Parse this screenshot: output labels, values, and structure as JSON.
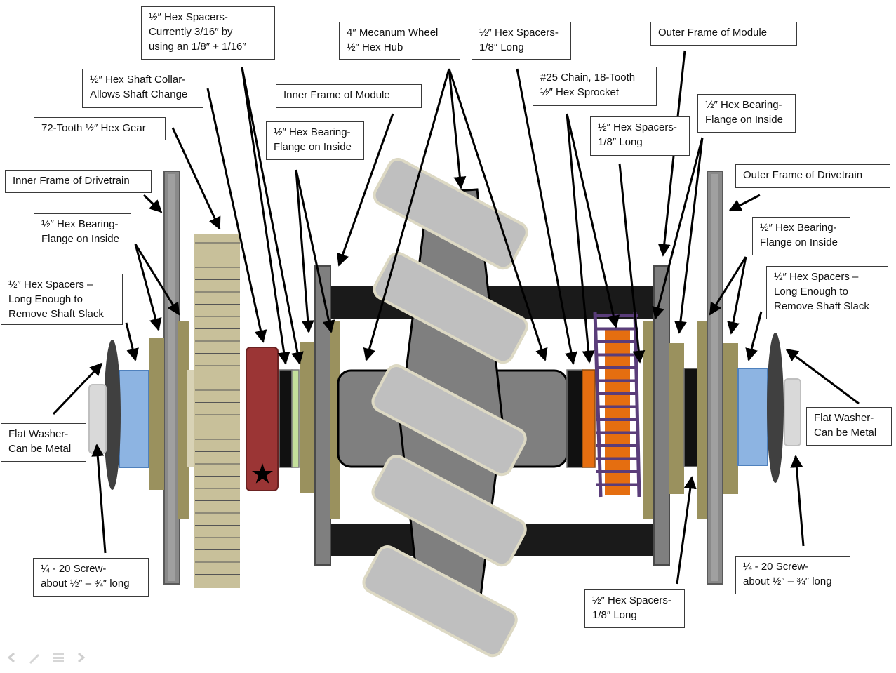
{
  "labels": {
    "hex_spacers_3_16": "½″ Hex Spacers-\nCurrently 3/16″ by\nusing an 1/8″ + 1/16″",
    "mecanum_wheel": "4″ Mecanum Wheel\n½″ Hex Hub",
    "hex_spacers_top_right": "½″ Hex Spacers-\n1/8″ Long",
    "outer_frame_module": "Outer Frame of Module",
    "shaft_collar": "½″ Hex Shaft Collar-\nAllows Shaft Change",
    "inner_frame_module": "Inner Frame of Module",
    "chain_sprocket": "#25 Chain, 18-Tooth\n½″ Hex Sprocket",
    "bearing_right_upper": "½″ Hex Bearing-\nFlange on Inside",
    "hex_gear": "72-Tooth ½″ Hex Gear",
    "bearing_center": "½″ Hex Bearing-\nFlange on Inside",
    "hex_spacers_mid_right": "½″ Hex Spacers-\n1/8″ Long",
    "inner_frame_drivetrain": "Inner Frame of Drivetrain",
    "outer_frame_drivetrain": "Outer Frame of Drivetrain",
    "bearing_left": "½″ Hex Bearing-\nFlange on Inside",
    "bearing_right_lower": "½″ Hex Bearing-\nFlange on Inside",
    "spacers_long_left": "½″ Hex Spacers –\nLong Enough to\nRemove Shaft Slack",
    "spacers_long_right": "½″ Hex Spacers –\nLong Enough to\nRemove Shaft Slack",
    "washer_left": "Flat Washer-\nCan be Metal",
    "washer_right": "Flat Washer-\nCan be Metal",
    "screw_left": "¼  - 20 Screw-\nabout ½″ – ¾″ long",
    "screw_right": "¼  - 20 Screw-\nabout ½″ – ¾″ long",
    "hex_spacers_bottom": "½″ Hex Spacers-\n1/8″ Long"
  },
  "colors": {
    "frame": "#8a8a8a",
    "bearing": "#9a915e",
    "gear": "#c8c09a",
    "collar": "#9b3535",
    "spacer_black": "#111111",
    "spacer_green": "#c4df9b",
    "hub": "#7f7f7f",
    "roller": "#bfbfbf",
    "sprocket": "#e56e10",
    "chain": "#5a3d7a",
    "blue_spacer": "#8db4e2"
  },
  "icons": [
    "arrow-left-icon",
    "pen-icon",
    "menu-icon",
    "arrow-right-icon"
  ]
}
